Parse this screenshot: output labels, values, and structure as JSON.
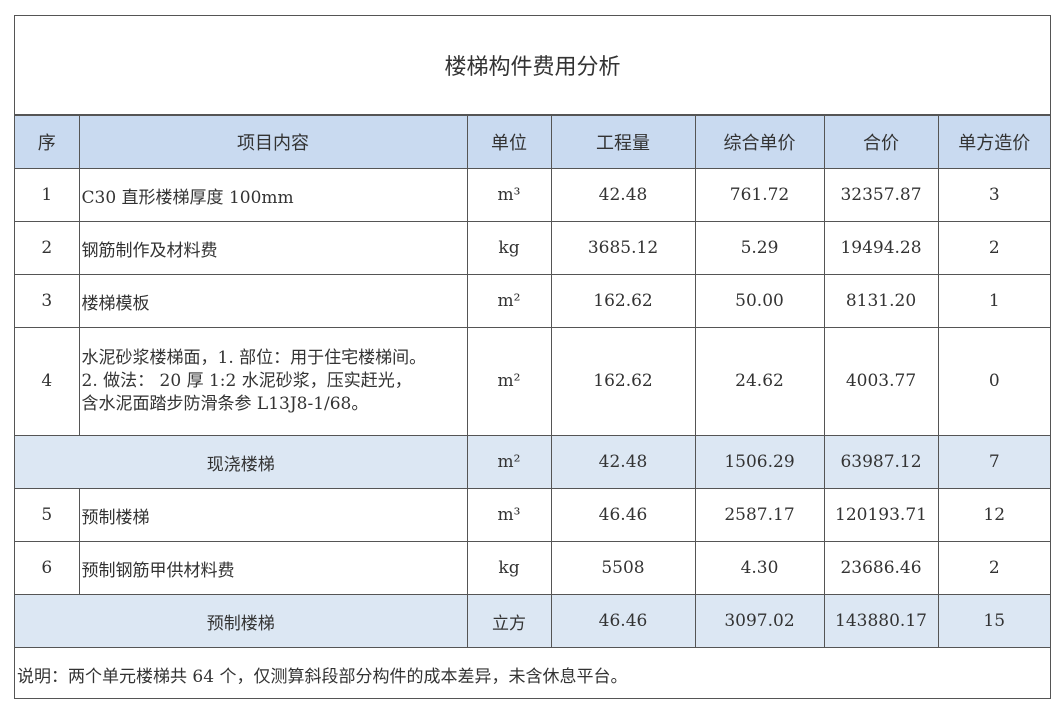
{
  "title": "楼梯构件费用分析",
  "headers": [
    "序",
    "项目内容",
    "单位",
    "工程量",
    "综合单价",
    "合价",
    "单方造价"
  ],
  "rows": [
    {
      "no": "1",
      "item": "C30 直形楼梯厚度 100mm",
      "unit": "m³",
      "qty": "42.48",
      "price": "761.72",
      "total": "32357.87",
      "per": "3"
    },
    {
      "no": "2",
      "item": "钢筋制作及材料费",
      "unit": "kg",
      "qty": "3685.12",
      "price": "5.29",
      "total": "19494.28",
      "per": "2"
    },
    {
      "no": "3",
      "item": "楼梯模板",
      "unit": "m²",
      "qty": "162.62",
      "price": "50.00",
      "total": "8131.20",
      "per": "1"
    },
    {
      "no": "4",
      "item": "水泥砂浆楼梯面，1. 部位：用于住宅楼梯间。2. 做法： 20 厚 1:2 水泥砂浆，压实赶光，含水泥面踏步防滑条参 L13J8-1/68。",
      "item_lines": [
        "水泥砂浆楼梯面，1. 部位：用于住宅楼梯间。",
        "2. 做法： 20 厚 1:2 水泥砂浆，压实赶光，",
        "含水泥面踏步防滑条参 L13J8-1/68。"
      ],
      "unit": "m²",
      "qty": "162.62",
      "price": "24.62",
      "total": "4003.77",
      "per": "0"
    },
    {
      "subtotal": true,
      "item": "现浇楼梯",
      "unit": "m²",
      "qty": "42.48",
      "price": "1506.29",
      "total": "63987.12",
      "per": "7"
    },
    {
      "no": "5",
      "item": "预制楼梯",
      "unit": "m³",
      "qty": "46.46",
      "price": "2587.17",
      "total": "120193.71",
      "per": "12"
    },
    {
      "no": "6",
      "item": "预制钢筋甲供材料费",
      "unit": "kg",
      "qty": "5508",
      "price": "4.30",
      "total": "23686.46",
      "per": "2"
    },
    {
      "subtotal": true,
      "item": "预制楼梯",
      "unit": "立方",
      "qty": "46.46",
      "price": "3097.02",
      "total": "143880.17",
      "per": "15"
    }
  ],
  "note": "说明：两个单元楼梯共 64 个，仅测算斜段部分构件的成本差异，未含休息平台。",
  "colors": {
    "header_bg": "#c9daf0",
    "subtotal_bg": "#dce7f3",
    "border": "#555555"
  }
}
